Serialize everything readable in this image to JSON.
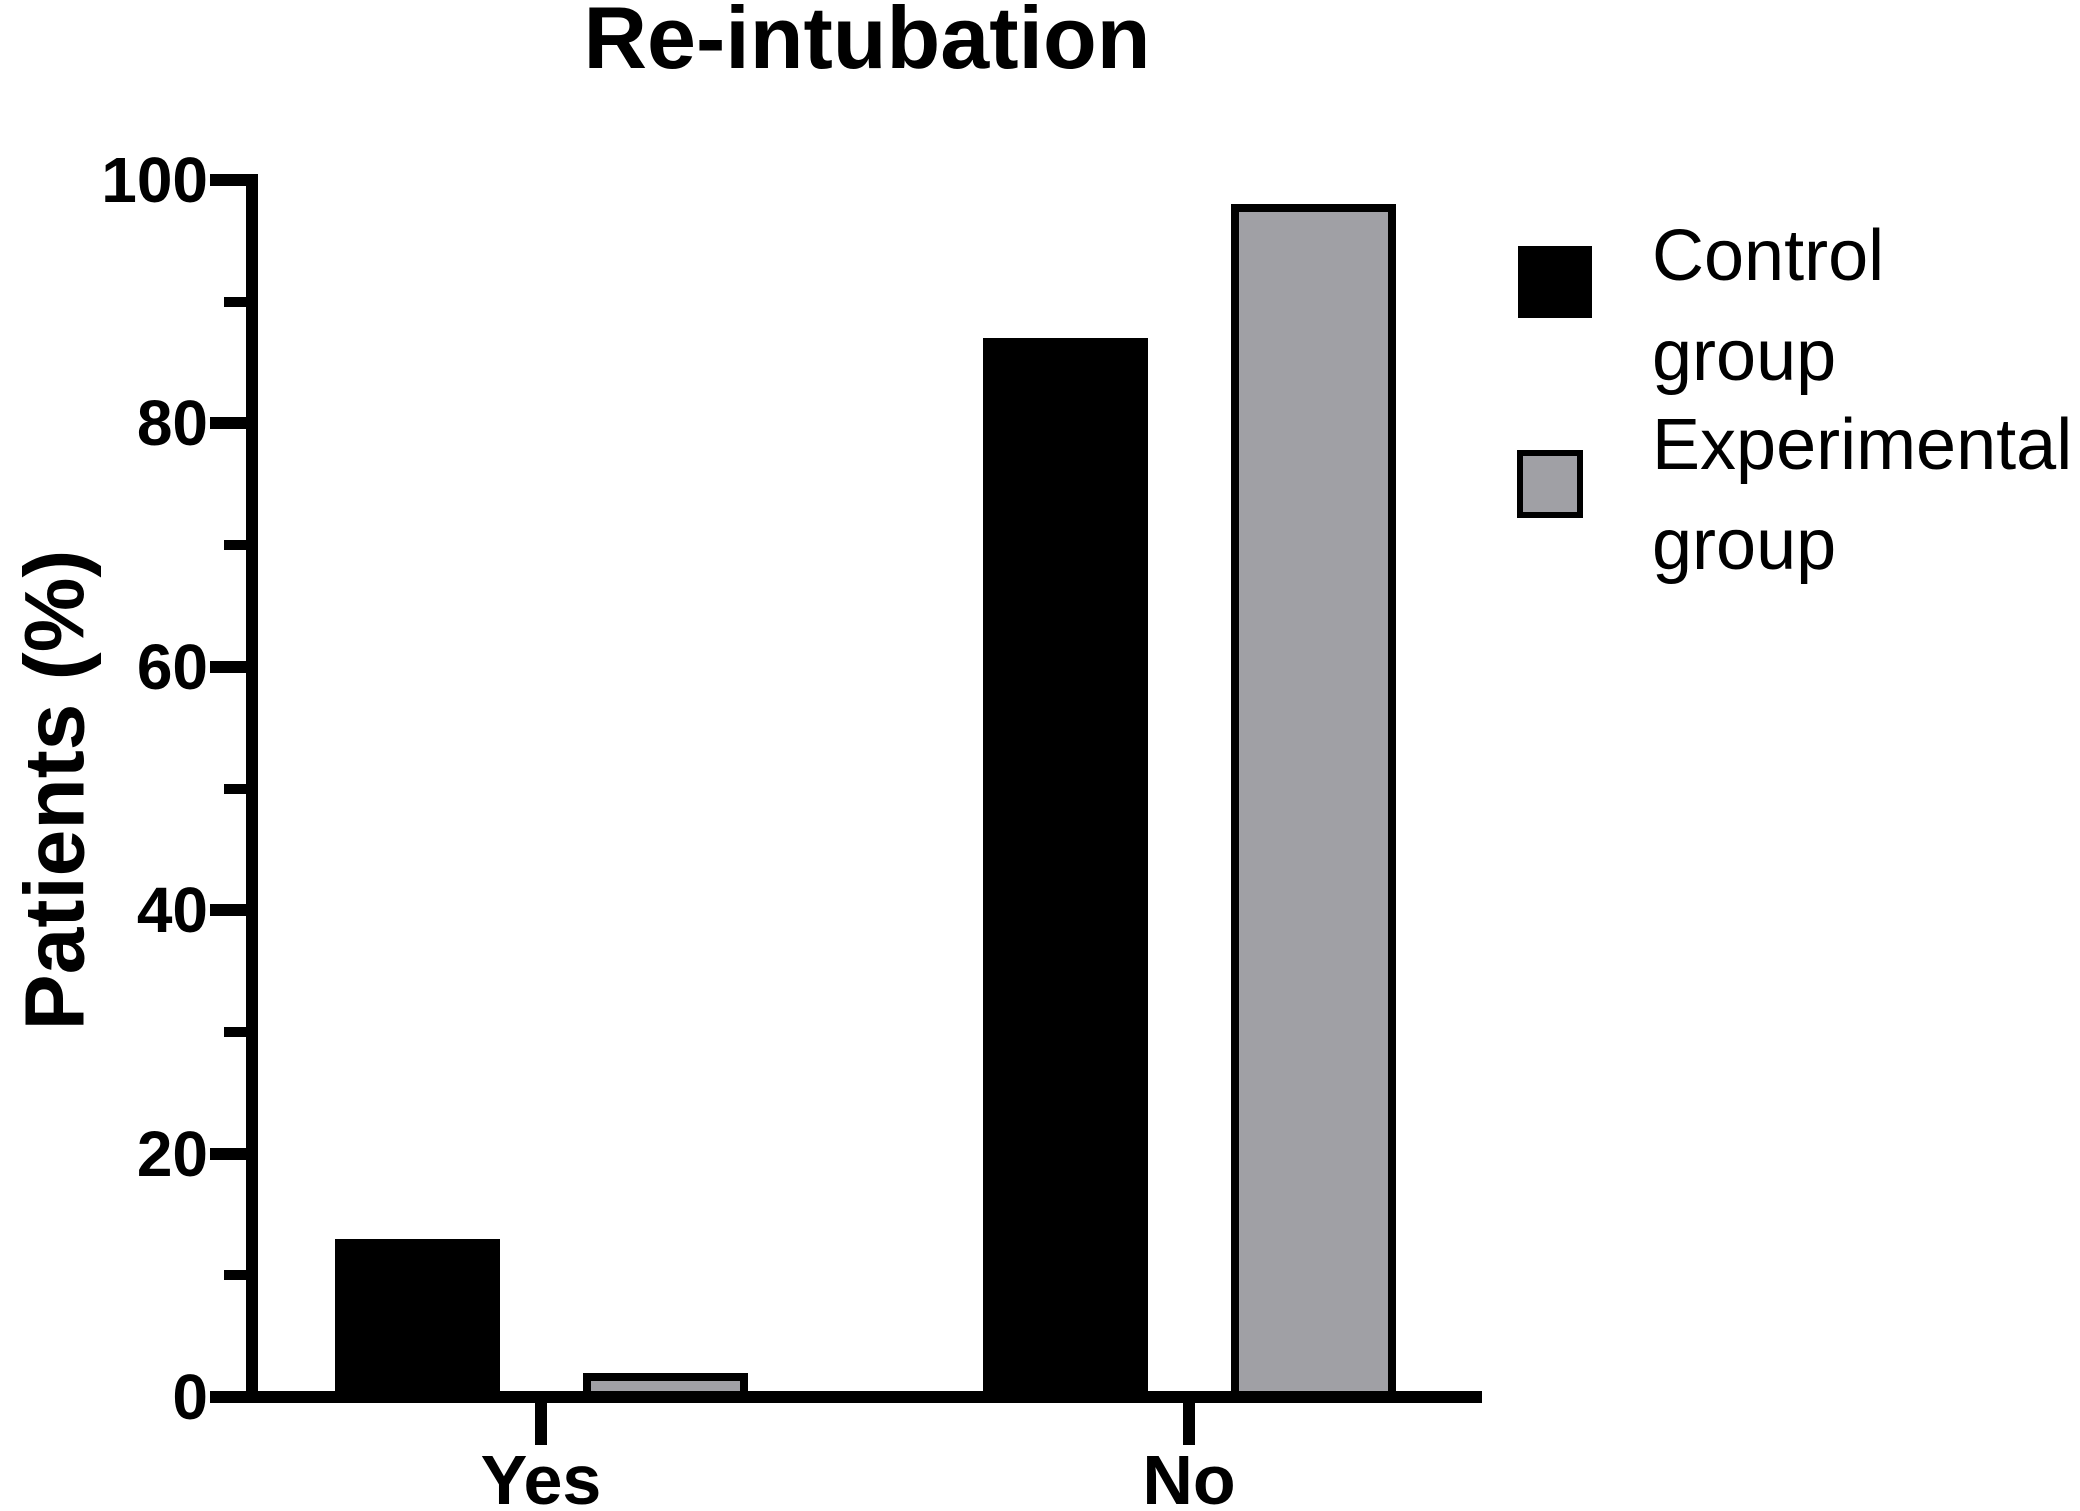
{
  "title": "Re-intubation",
  "y_axis": {
    "label": "Patients (%)",
    "tick_labels": [
      "0",
      "20",
      "40",
      "60",
      "80",
      "100"
    ]
  },
  "x_axis": {
    "categories": [
      "Yes",
      "No"
    ]
  },
  "legend": {
    "entries": [
      {
        "label": "Control group",
        "label_lines": "Control\ngroup",
        "color": "#000000"
      },
      {
        "label": "Experimental group",
        "label_lines": "Experimental\ngroup",
        "color": "#A0A0A5"
      }
    ]
  },
  "chart_data": {
    "type": "bar",
    "title": "Re-intubation",
    "xlabel": "",
    "ylabel": "Patients (%)",
    "units": "percent",
    "categories": [
      "Yes",
      "No"
    ],
    "series": [
      {
        "name": "Control group",
        "color": "#000000",
        "outline": "#000000",
        "values": [
          13,
          87
        ]
      },
      {
        "name": "Experimental group",
        "color": "#A0A0A5",
        "outline": "#000000",
        "values": [
          2,
          98
        ]
      }
    ],
    "ylim": [
      0,
      100
    ],
    "yticks_major": [
      0,
      20,
      40,
      60,
      80,
      100
    ],
    "yticks_minor": [
      10,
      30,
      50,
      70,
      90
    ],
    "grid": false,
    "legend_position": "right"
  }
}
